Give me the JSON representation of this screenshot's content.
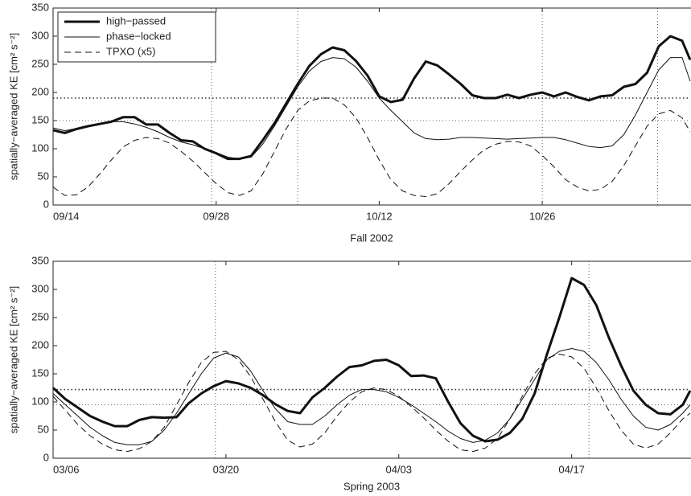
{
  "chart_data": [
    {
      "type": "line",
      "xlabel": "Fall 2002",
      "ylabel": "spatially−averaged KE [cm² s⁻²]",
      "x": [
        0,
        1,
        2,
        3,
        4,
        5,
        6,
        7,
        8,
        9,
        10,
        11,
        12,
        13,
        14,
        15,
        16,
        17,
        18,
        19,
        20,
        21,
        22,
        23,
        24,
        25,
        26,
        27,
        28,
        29,
        30,
        31,
        32,
        33,
        34,
        35,
        36,
        37,
        38,
        39,
        40,
        41,
        42,
        43,
        44,
        45,
        46,
        47,
        48,
        49,
        50,
        51,
        52,
        53,
        54,
        54.7
      ],
      "xlim": [
        0,
        54.7
      ],
      "xticks": [
        {
          "value": 0,
          "label": "09/14"
        },
        {
          "value": 14,
          "label": "09/28"
        },
        {
          "value": 28,
          "label": "10/12"
        },
        {
          "value": 42,
          "label": "10/26"
        }
      ],
      "ylim": [
        0,
        350
      ],
      "yticks": [
        0,
        50,
        100,
        150,
        200,
        250,
        300,
        350
      ],
      "hlines": [
        190,
        150
      ],
      "vlines": [
        13.6,
        21,
        42,
        51.9
      ],
      "legend": "upper left",
      "series": [
        {
          "name": "high−passed",
          "color": "#111111",
          "line_width": 3,
          "dash": "solid",
          "values": [
            133,
            128,
            135,
            140,
            144,
            148,
            156,
            156,
            143,
            143,
            128,
            115,
            113,
            100,
            92,
            82,
            82,
            87,
            115,
            145,
            180,
            215,
            247,
            268,
            280,
            275,
            256,
            230,
            193,
            183,
            187,
            225,
            255,
            248,
            232,
            215,
            195,
            190,
            190,
            196,
            190,
            196,
            200,
            193,
            200,
            192,
            186,
            193,
            195,
            210,
            215,
            235,
            282,
            300,
            292,
            258
          ]
        },
        {
          "name": "phase−locked",
          "color": "#111111",
          "line_width": 1,
          "dash": "solid",
          "values": [
            137,
            132,
            136,
            140,
            144,
            148,
            148,
            144,
            138,
            130,
            120,
            112,
            107,
            100,
            93,
            85,
            82,
            85,
            108,
            140,
            175,
            210,
            238,
            255,
            262,
            260,
            245,
            220,
            190,
            168,
            148,
            128,
            118,
            116,
            117,
            120,
            120,
            119,
            118,
            117,
            118,
            119,
            120,
            120,
            116,
            110,
            104,
            102,
            105,
            125,
            160,
            200,
            240,
            262,
            262,
            220
          ]
        },
        {
          "name": "TPXO (x5)",
          "color": "#111111",
          "line_width": 1,
          "dash": "dashed",
          "values": [
            32,
            17,
            18,
            32,
            55,
            80,
            103,
            115,
            120,
            118,
            110,
            95,
            78,
            58,
            38,
            22,
            17,
            25,
            55,
            95,
            135,
            168,
            185,
            190,
            190,
            178,
            155,
            120,
            80,
            45,
            25,
            17,
            15,
            20,
            38,
            60,
            80,
            98,
            108,
            113,
            112,
            105,
            88,
            68,
            45,
            32,
            25,
            28,
            42,
            70,
            105,
            140,
            162,
            168,
            155,
            130
          ]
        }
      ]
    },
    {
      "type": "line",
      "xlabel": "Spring 2003",
      "ylabel": "spatially−averaged KE [cm² s⁻²]",
      "x": [
        0,
        1,
        2,
        3,
        4,
        5,
        6,
        7,
        8,
        9,
        10,
        11,
        12,
        13,
        14,
        15,
        16,
        17,
        18,
        19,
        20,
        21,
        22,
        23,
        24,
        25,
        26,
        27,
        28,
        29,
        30,
        31,
        32,
        33,
        34,
        35,
        36,
        37,
        38,
        39,
        40,
        41,
        42,
        43,
        44,
        45,
        46,
        47,
        48,
        49,
        50,
        51,
        51.6
      ],
      "xlim": [
        0,
        51.6
      ],
      "xticks": [
        {
          "value": 0,
          "label": "03/06"
        },
        {
          "value": 14,
          "label": "03/20"
        },
        {
          "value": 28,
          "label": "04/03"
        },
        {
          "value": 42,
          "label": "04/17"
        }
      ],
      "ylim": [
        0,
        350
      ],
      "yticks": [
        0,
        50,
        100,
        150,
        200,
        250,
        300,
        350
      ],
      "hlines": [
        122,
        95
      ],
      "vlines": [
        13.15,
        43.4
      ],
      "series": [
        {
          "color": "#111111",
          "line_width": 3,
          "dash": "solid",
          "values": [
            125,
            105,
            90,
            75,
            65,
            57,
            57,
            68,
            73,
            72,
            73,
            98,
            115,
            128,
            137,
            133,
            125,
            112,
            96,
            84,
            80,
            108,
            125,
            145,
            162,
            165,
            173,
            175,
            165,
            146,
            147,
            142,
            100,
            62,
            40,
            30,
            33,
            45,
            70,
            115,
            185,
            250,
            320,
            308,
            272,
            215,
            165,
            120,
            95,
            80,
            78,
            95,
            120
          ]
        },
        {
          "color": "#111111",
          "line_width": 1,
          "dash": "solid",
          "values": [
            115,
            95,
            75,
            55,
            40,
            28,
            24,
            24,
            30,
            50,
            80,
            115,
            150,
            178,
            187,
            180,
            155,
            120,
            88,
            65,
            60,
            60,
            75,
            95,
            112,
            122,
            122,
            118,
            108,
            95,
            80,
            65,
            48,
            35,
            28,
            32,
            45,
            70,
            105,
            140,
            175,
            190,
            195,
            190,
            170,
            140,
            105,
            75,
            55,
            50,
            60,
            80,
            95
          ]
        },
        {
          "color": "#111111",
          "line_width": 1,
          "dash": "dashed",
          "values": [
            110,
            85,
            60,
            40,
            25,
            15,
            12,
            17,
            30,
            55,
            95,
            135,
            170,
            188,
            190,
            175,
            145,
            105,
            65,
            32,
            20,
            25,
            45,
            75,
            100,
            118,
            125,
            122,
            110,
            92,
            72,
            50,
            30,
            15,
            12,
            18,
            35,
            70,
            110,
            150,
            178,
            185,
            180,
            160,
            125,
            85,
            50,
            25,
            18,
            25,
            45,
            70,
            80
          ]
        }
      ]
    }
  ]
}
